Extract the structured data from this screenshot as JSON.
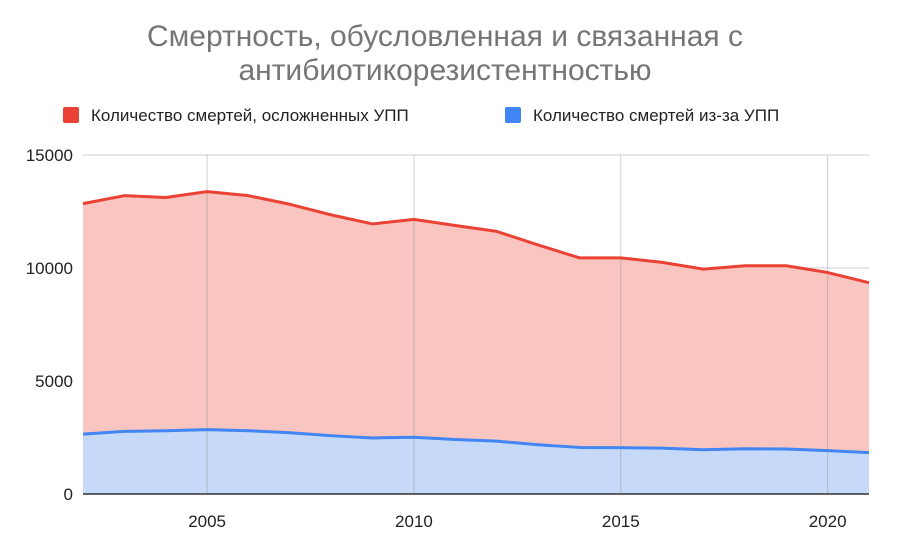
{
  "chart_data": {
    "type": "area",
    "title": "Смертность, обусловленная и связанная с антибиотикорезистентностью",
    "title_lines": [
      "Смертность, обусловленная и связанная с",
      "антибиотикорезистентностью"
    ],
    "xlabel": "",
    "ylabel": "",
    "x": [
      2002,
      2003,
      2004,
      2005,
      2006,
      2007,
      2008,
      2009,
      2010,
      2011,
      2012,
      2013,
      2014,
      2015,
      2016,
      2017,
      2018,
      2019,
      2020,
      2021
    ],
    "xlim": [
      2002,
      2021
    ],
    "ylim": [
      0,
      15000
    ],
    "xticks": [
      "2005",
      "2010",
      "2015",
      "2020"
    ],
    "xtick_values": [
      2005,
      2010,
      2015,
      2020
    ],
    "yticks": [
      "0",
      "5000",
      "10000",
      "15000"
    ],
    "ytick_values": [
      0,
      5000,
      10000,
      15000
    ],
    "grid": true,
    "legend_position": "top",
    "series": [
      {
        "name": "Количество смертей, осложненных УПП",
        "color": "#ea4335",
        "fill": "#f8c5c0",
        "values": [
          12850,
          13200,
          13120,
          13380,
          13200,
          12820,
          12350,
          11950,
          12150,
          11880,
          11620,
          11020,
          10450,
          10450,
          10250,
          9950,
          10100,
          10100,
          9800,
          9350
        ]
      },
      {
        "name": "Количество смертей из-за УПП",
        "color": "#4285f4",
        "fill": "#c6d9f8",
        "values": [
          2650,
          2770,
          2800,
          2850,
          2800,
          2710,
          2580,
          2480,
          2510,
          2410,
          2340,
          2180,
          2060,
          2050,
          2030,
          1960,
          2000,
          1990,
          1920,
          1830
        ]
      }
    ]
  }
}
